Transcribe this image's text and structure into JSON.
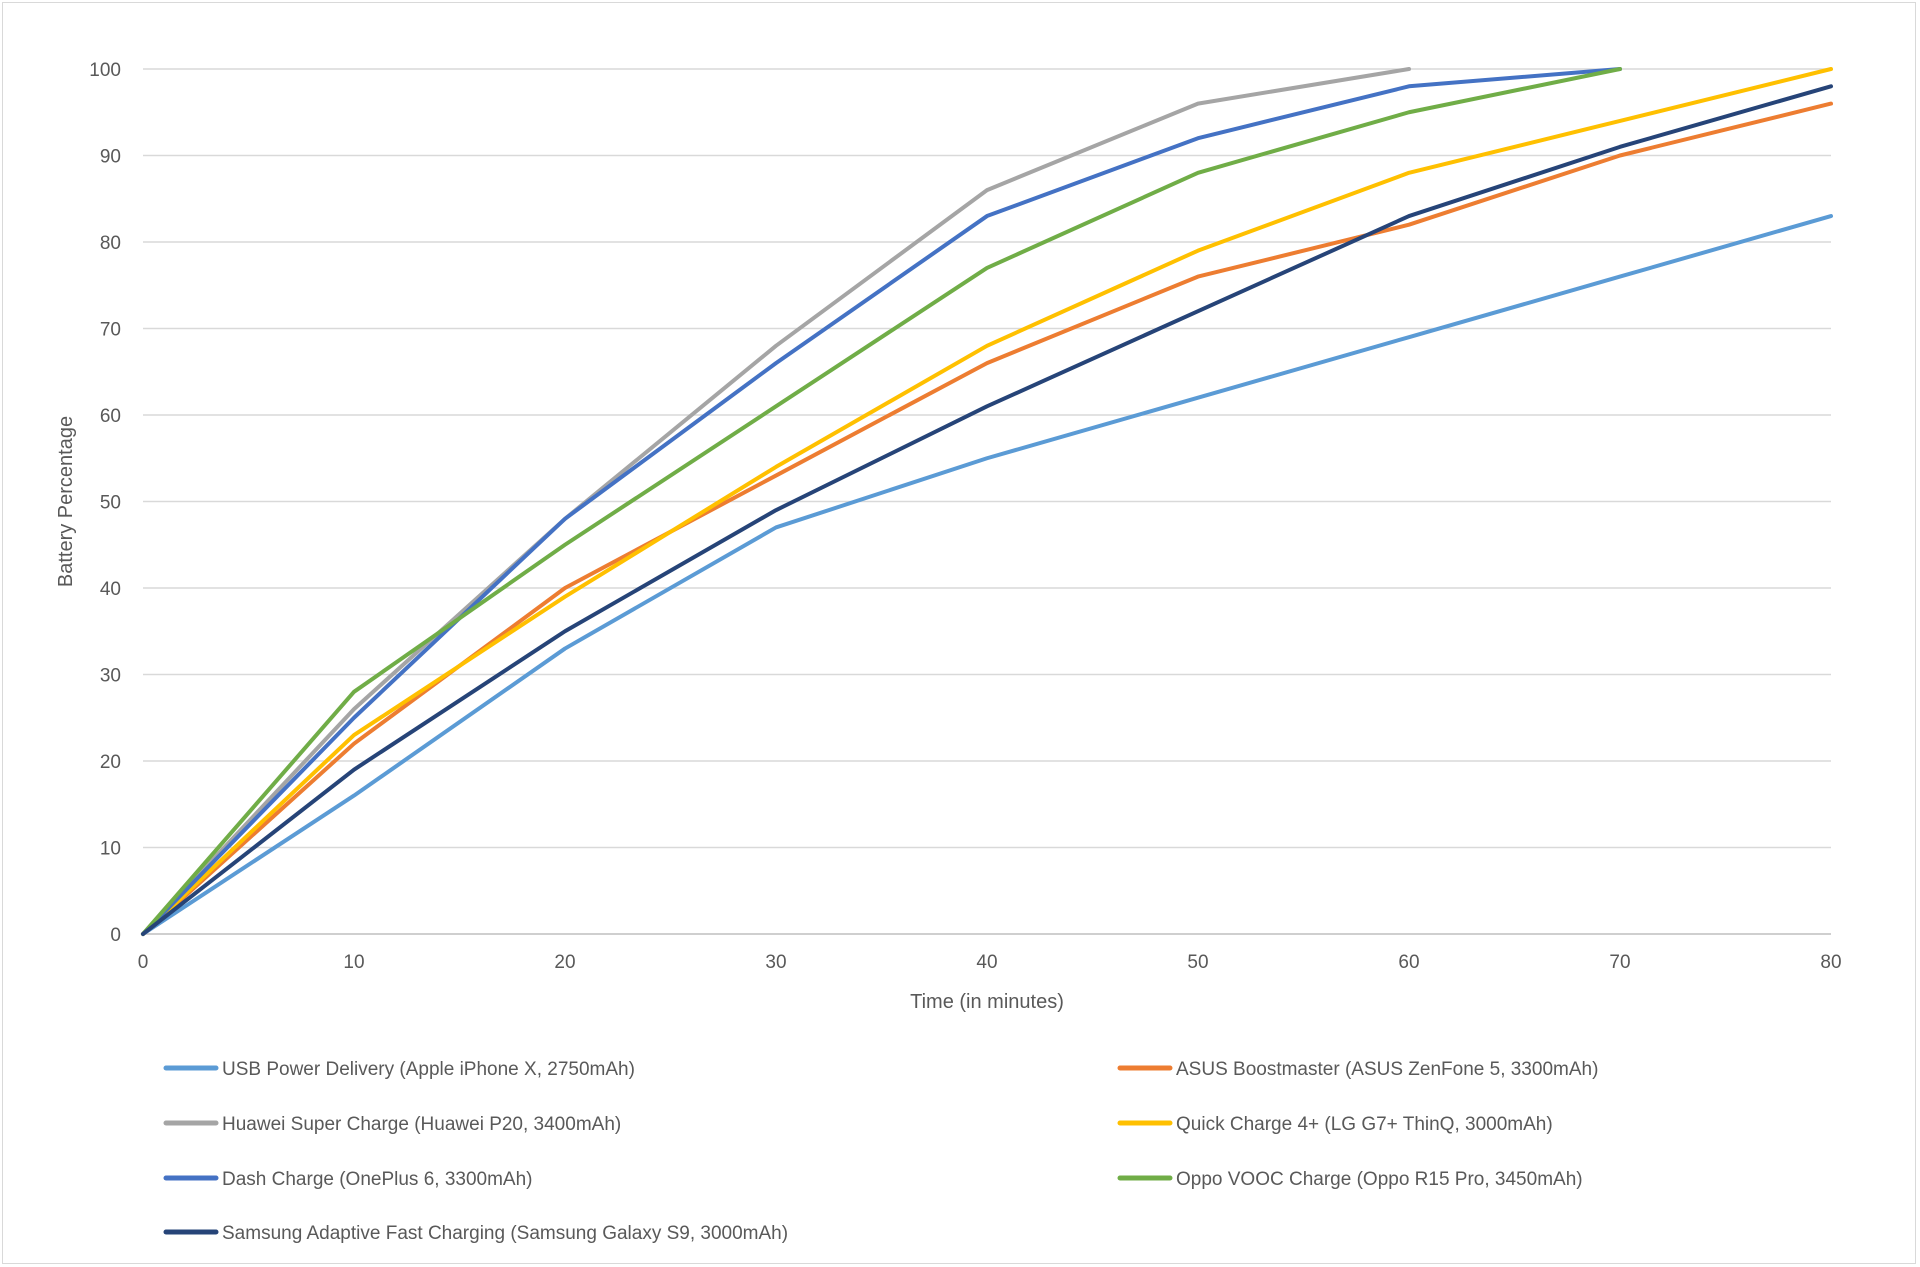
{
  "chart_data": {
    "type": "line",
    "title": "",
    "xlabel": "Time (in minutes)",
    "ylabel": "Battery Percentage",
    "xlim": [
      0,
      80
    ],
    "ylim": [
      0,
      100
    ],
    "x_ticks": [
      0,
      10,
      20,
      30,
      40,
      50,
      60,
      70,
      80
    ],
    "y_ticks": [
      0,
      10,
      20,
      30,
      40,
      50,
      60,
      70,
      80,
      90,
      100
    ],
    "grid": "horizontal",
    "legend_position": "bottom",
    "series": [
      {
        "name": "USB Power Delivery (Apple iPhone X, 2750mAh)",
        "color": "#5b9bd5",
        "x": [
          0,
          10,
          20,
          30,
          40,
          50,
          60,
          70,
          80
        ],
        "values": [
          0,
          16,
          33,
          47,
          55,
          62,
          69,
          76,
          83
        ]
      },
      {
        "name": "ASUS Boostmaster (ASUS ZenFone 5, 3300mAh)",
        "color": "#ed7d31",
        "x": [
          0,
          10,
          20,
          30,
          40,
          50,
          60,
          70,
          80
        ],
        "values": [
          0,
          22,
          40,
          53,
          66,
          76,
          82,
          90,
          96
        ]
      },
      {
        "name": "Huawei Super Charge (Huawei P20, 3400mAh)",
        "color": "#a5a5a5",
        "x": [
          0,
          10,
          20,
          30,
          40,
          50,
          60
        ],
        "values": [
          0,
          26,
          48,
          68,
          86,
          96,
          100
        ]
      },
      {
        "name": "Quick Charge 4+ (LG G7+ ThinQ, 3000mAh)",
        "color": "#ffc000",
        "x": [
          0,
          10,
          20,
          30,
          40,
          50,
          60,
          70,
          80
        ],
        "values": [
          0,
          23,
          39,
          54,
          68,
          79,
          88,
          94,
          100
        ]
      },
      {
        "name": "Dash Charge (OnePlus 6, 3300mAh)",
        "color": "#4472c4",
        "x": [
          0,
          10,
          20,
          30,
          40,
          50,
          60,
          70
        ],
        "values": [
          0,
          25,
          48,
          66,
          83,
          92,
          98,
          100
        ]
      },
      {
        "name": "Oppo VOOC Charge (Oppo R15 Pro, 3450mAh)",
        "color": "#70ad47",
        "x": [
          0,
          10,
          20,
          30,
          40,
          50,
          60,
          70
        ],
        "values": [
          0,
          28,
          45,
          61,
          77,
          88,
          95,
          100
        ]
      },
      {
        "name": "Samsung Adaptive Fast Charging (Samsung Galaxy S9, 3000mAh)",
        "color": "#264478",
        "x": [
          0,
          10,
          20,
          30,
          40,
          50,
          60,
          70,
          80
        ],
        "values": [
          0,
          19,
          35,
          49,
          61,
          72,
          83,
          91,
          98
        ]
      }
    ]
  }
}
